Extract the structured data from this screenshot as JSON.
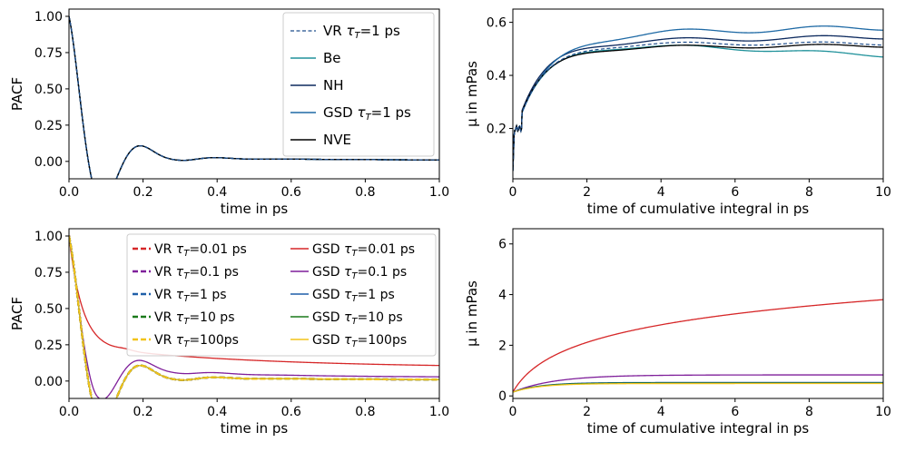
{
  "chart_data": [
    {
      "type": "line",
      "panel": "top-left",
      "xlabel": "time in ps",
      "ylabel": "PACF",
      "xlim": [
        0,
        1.0
      ],
      "ylim": [
        -0.12,
        1.05
      ],
      "xticks": [
        "0.0",
        "0.2",
        "0.4",
        "0.6",
        "0.8",
        "1.0"
      ],
      "xtick_values": [
        0,
        0.2,
        0.4,
        0.6,
        0.8,
        1.0
      ],
      "yticks": [
        "0.00",
        "0.25",
        "0.50",
        "0.75",
        "1.00"
      ],
      "ytick_values": [
        0,
        0.25,
        0.5,
        0.75,
        1.0
      ],
      "legend_position": "top-right",
      "series": [
        {
          "name": "VR",
          "tau": "T",
          "tau_value": "=1 ps",
          "color": "#1f4e8c",
          "style": "dashed",
          "curve": "pacf",
          "params": {
            "offset": 0,
            "amp": 0
          }
        },
        {
          "name": "Be",
          "color": "#21929b",
          "style": "solid",
          "curve": "pacf",
          "params": {
            "offset": 0,
            "amp": 0
          }
        },
        {
          "name": "NH",
          "color": "#0d2a5e",
          "style": "solid",
          "curve": "pacf",
          "params": {
            "offset": 0,
            "amp": 0
          }
        },
        {
          "name": "GSD",
          "tau": "T",
          "tau_value": "=1 ps",
          "color": "#1f6aa5",
          "style": "solid",
          "curve": "pacf",
          "params": {
            "offset": 0,
            "amp": 0
          }
        },
        {
          "name": "NVE",
          "color": "#000000",
          "style": "solid",
          "curve": "pacf",
          "params": {
            "offset": 0,
            "amp": 0
          }
        }
      ]
    },
    {
      "type": "line",
      "panel": "top-right",
      "xlabel": "time of cumulative integral in ps",
      "ylabel": "µ in mPas",
      "xlim": [
        0,
        10
      ],
      "ylim": [
        0.01,
        0.65
      ],
      "xticks": [
        "0",
        "2",
        "4",
        "6",
        "8",
        "10"
      ],
      "xtick_values": [
        0,
        2,
        4,
        6,
        8,
        10
      ],
      "yticks": [
        "0.2",
        "0.4",
        "0.6"
      ],
      "ytick_values": [
        0.2,
        0.4,
        0.6
      ],
      "series": [
        {
          "name": "VR τT=1 ps",
          "color": "#1f4e8c",
          "style": "dashed",
          "curve": "visc",
          "params": {
            "plateau": 0.52,
            "rate": 1.3,
            "drift": 0.0,
            "wobble": 0.006
          }
        },
        {
          "name": "Be",
          "color": "#21929b",
          "style": "solid",
          "curve": "visc",
          "params": {
            "plateau": 0.52,
            "rate": 1.3,
            "drift": -0.0025,
            "wobble": 0.006
          }
        },
        {
          "name": "NH",
          "color": "#0d2a5e",
          "style": "solid",
          "curve": "visc",
          "params": {
            "plateau": 0.525,
            "rate": 1.35,
            "drift": 0.002,
            "wobble": 0.008
          }
        },
        {
          "name": "GSD τT=1 ps",
          "color": "#1f6aa5",
          "style": "solid",
          "curve": "visc",
          "params": {
            "plateau": 0.555,
            "rate": 1.1,
            "drift": 0.0025,
            "wobble": 0.01
          }
        },
        {
          "name": "NVE",
          "color": "#000000",
          "style": "solid",
          "curve": "visc",
          "params": {
            "plateau": 0.505,
            "rate": 1.4,
            "drift": 0.0007,
            "wobble": 0.006
          }
        }
      ]
    },
    {
      "type": "line",
      "panel": "bottom-left",
      "xlabel": "time in ps",
      "ylabel": "PACF",
      "xlim": [
        0,
        1.0
      ],
      "ylim": [
        -0.12,
        1.05
      ],
      "xticks": [
        "0.0",
        "0.2",
        "0.4",
        "0.6",
        "0.8",
        "1.0"
      ],
      "xtick_values": [
        0,
        0.2,
        0.4,
        0.6,
        0.8,
        1.0
      ],
      "yticks": [
        "0.00",
        "0.25",
        "0.50",
        "0.75",
        "1.00"
      ],
      "ytick_values": [
        0,
        0.25,
        0.5,
        0.75,
        1.0
      ],
      "legend_position": "top-right",
      "series": [
        {
          "name": "VR",
          "tau": "T",
          "tau_value": "=0.01 ps",
          "color": "#d62728",
          "style": "dashed-thick",
          "curve": "pacf",
          "params": {
            "offset": 0,
            "amp": 0
          }
        },
        {
          "name": "VR",
          "tau": "T",
          "tau_value": "=0.1 ps",
          "color": "#7f1f9a",
          "style": "dashed-thick",
          "curve": "pacf",
          "params": {
            "offset": 0,
            "amp": 0
          }
        },
        {
          "name": "VR",
          "tau": "T",
          "tau_value": "=1 ps",
          "color": "#1f5fa8",
          "style": "dashed-thick",
          "curve": "pacf",
          "params": {
            "offset": 0,
            "amp": 0
          }
        },
        {
          "name": "VR",
          "tau": "T",
          "tau_value": "=10 ps",
          "color": "#1a7a1a",
          "style": "dashed-thick",
          "curve": "pacf",
          "params": {
            "offset": 0,
            "amp": 0
          }
        },
        {
          "name": "VR",
          "tau": "T",
          "tau_value": "=100ps",
          "color": "#f2c318",
          "style": "dashed-thick",
          "curve": "pacf",
          "params": {
            "offset": 0,
            "amp": 0
          }
        },
        {
          "name": "GSD",
          "tau": "T",
          "tau_value": "=0.01 ps",
          "color": "#d62728",
          "style": "solid",
          "curve": "pacf-slow",
          "params": {
            "offset": 0,
            "amp": 1
          }
        },
        {
          "name": "GSD",
          "tau": "T",
          "tau_value": "=0.1 ps",
          "color": "#7f1f9a",
          "style": "solid",
          "curve": "pacf-mid",
          "params": {
            "offset": 0,
            "amp": 1
          }
        },
        {
          "name": "GSD",
          "tau": "T",
          "tau_value": "=1 ps",
          "color": "#1f5fa8",
          "style": "solid",
          "curve": "pacf",
          "params": {
            "offset": 0,
            "amp": 0
          }
        },
        {
          "name": "GSD",
          "tau": "T",
          "tau_value": "=10 ps",
          "color": "#1a7a1a",
          "style": "solid",
          "curve": "pacf",
          "params": {
            "offset": 0,
            "amp": 0
          }
        },
        {
          "name": "GSD",
          "tau": "T",
          "tau_value": "=100ps",
          "color": "#f2c318",
          "style": "solid",
          "curve": "pacf",
          "params": {
            "offset": 0,
            "amp": 0
          }
        }
      ]
    },
    {
      "type": "line",
      "panel": "bottom-right",
      "xlabel": "time of cumulative integral in ps",
      "ylabel": "µ in mPas",
      "xlim": [
        0,
        10
      ],
      "ylim": [
        -0.1,
        6.6
      ],
      "xticks": [
        "0",
        "2",
        "4",
        "6",
        "8",
        "10"
      ],
      "xtick_values": [
        0,
        2,
        4,
        6,
        8,
        10
      ],
      "yticks": [
        "0",
        "2",
        "4",
        "6"
      ],
      "ytick_values": [
        0,
        2,
        4,
        6
      ],
      "series": [
        {
          "name": "GSD τT=0.01 ps",
          "color": "#d62728",
          "style": "solid",
          "curve": "visc-log",
          "params": {
            "start": 0.15,
            "end": 3.8
          }
        },
        {
          "name": "GSD τT=0.1 ps",
          "color": "#7f1f9a",
          "style": "solid",
          "curve": "visc-sat",
          "params": {
            "start": 0.15,
            "end": 0.83,
            "rate": 0.9
          }
        },
        {
          "name": "GSD τT=1 ps",
          "color": "#1f5fa8",
          "style": "solid",
          "curve": "visc-sat",
          "params": {
            "start": 0.15,
            "end": 0.53,
            "rate": 1.4
          }
        },
        {
          "name": "GSD τT=10 ps",
          "color": "#1a7a1a",
          "style": "solid",
          "curve": "visc-sat",
          "params": {
            "start": 0.15,
            "end": 0.51,
            "rate": 1.4
          }
        },
        {
          "name": "GSD τT=100ps",
          "color": "#f2c318",
          "style": "solid",
          "curve": "visc-sat",
          "params": {
            "start": 0.15,
            "end": 0.49,
            "rate": 1.4
          }
        }
      ]
    }
  ]
}
